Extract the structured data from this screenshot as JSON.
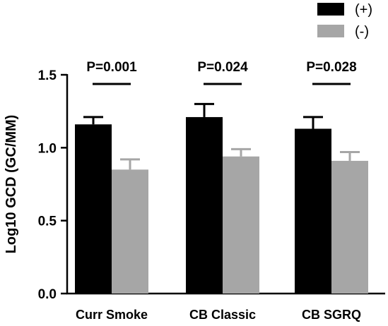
{
  "chart_data": {
    "type": "bar",
    "title": "",
    "xlabel": "",
    "ylabel": "Log10 GCD (GC/MM)",
    "ylim": [
      0,
      1.5
    ],
    "yticks": [
      0.0,
      0.5,
      1.0,
      1.5
    ],
    "ytick_labels": [
      "0.0",
      "0.5",
      "1.0",
      "1.5"
    ],
    "categories": [
      "Curr Smoke",
      "CB Classic",
      "CB SGRQ"
    ],
    "series": [
      {
        "name": "(+)",
        "color": "#000000",
        "values": [
          1.16,
          1.21,
          1.13
        ],
        "error": [
          0.05,
          0.09,
          0.08
        ]
      },
      {
        "name": "(-)",
        "color": "#a6a6a6",
        "values": [
          0.85,
          0.94,
          0.91
        ],
        "error": [
          0.07,
          0.05,
          0.06
        ]
      }
    ],
    "annotations": [
      "P=0.001",
      "P=0.024",
      "P=0.028"
    ],
    "legend_position": "top-right",
    "grid": false
  }
}
